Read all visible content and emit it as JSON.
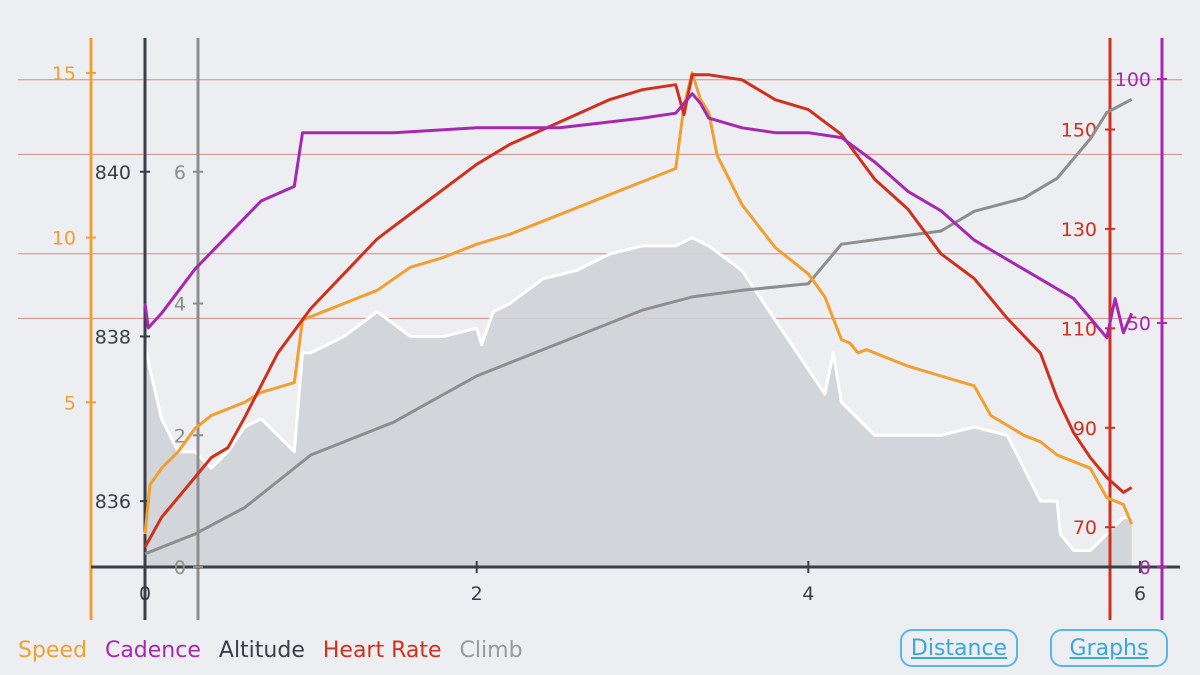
{
  "chart_data": {
    "type": "line",
    "x_axis": {
      "label": "Distance",
      "range": [
        0,
        6
      ],
      "ticks": [
        "0",
        "2",
        "4",
        "6"
      ]
    },
    "axes": {
      "speed": {
        "range": [
          0,
          16
        ],
        "ticks": [
          "5",
          "10",
          "15"
        ],
        "color": "#f0a030"
      },
      "altitude": {
        "range": [
          835.2,
          841.6
        ],
        "ticks": [
          "836",
          "838",
          "840"
        ],
        "color": "#3a3f47"
      },
      "climb": {
        "range": [
          0,
          8
        ],
        "ticks": [
          "0",
          "2",
          "4",
          "6"
        ],
        "color": "#8e8e8e"
      },
      "heart_rate": {
        "range": [
          62,
          168
        ],
        "ticks": [
          "70",
          "90",
          "110",
          "130",
          "150"
        ],
        "color": "#d0301e"
      },
      "cadence": {
        "range": [
          0,
          108
        ],
        "ticks": [
          "0",
          "50",
          "100"
        ],
        "color": "#a628b0"
      }
    },
    "reference_lines_heart_rate": [
      160,
      145,
      125,
      112
    ],
    "series": [
      {
        "name": "Altitude",
        "axis": "altitude",
        "style": "filled-area",
        "color": "#ffffff",
        "x": [
          0,
          0.03,
          0.1,
          0.2,
          0.3,
          0.4,
          0.5,
          0.6,
          0.7,
          0.8,
          0.9,
          0.95,
          1.0,
          1.2,
          1.4,
          1.6,
          1.8,
          2.0,
          2.03,
          2.1,
          2.2,
          2.4,
          2.6,
          2.8,
          3.0,
          3.2,
          3.3,
          3.4,
          3.6,
          3.8,
          4.0,
          4.1,
          4.15,
          4.2,
          4.3,
          4.4,
          4.6,
          4.8,
          5.0,
          5.2,
          5.4,
          5.5,
          5.52,
          5.6,
          5.7,
          5.8,
          5.9,
          5.95
        ],
        "values": [
          837.9,
          837.6,
          837.0,
          836.6,
          836.6,
          836.4,
          836.6,
          836.9,
          837.0,
          836.8,
          836.6,
          837.8,
          837.8,
          838.0,
          838.3,
          838.0,
          838.0,
          838.1,
          837.9,
          838.3,
          838.4,
          838.7,
          838.8,
          839.0,
          839.1,
          839.1,
          839.2,
          839.1,
          838.8,
          838.2,
          837.6,
          837.3,
          837.8,
          837.2,
          837.0,
          836.8,
          836.8,
          836.8,
          836.9,
          836.8,
          836.0,
          836.0,
          835.6,
          835.4,
          835.4,
          835.6,
          835.8,
          835.8
        ]
      },
      {
        "name": "Climb",
        "axis": "climb",
        "color": "#8e8e8e",
        "x": [
          0,
          0.3,
          0.6,
          1.0,
          1.5,
          2.0,
          2.5,
          3.0,
          3.3,
          3.6,
          4.0,
          4.2,
          4.5,
          4.8,
          5.0,
          5.3,
          5.5,
          5.7,
          5.8,
          5.95
        ],
        "values": [
          0.2,
          0.5,
          0.9,
          1.7,
          2.2,
          2.9,
          3.4,
          3.9,
          4.1,
          4.2,
          4.3,
          4.9,
          5.0,
          5.1,
          5.4,
          5.6,
          5.9,
          6.5,
          6.9,
          7.1
        ]
      },
      {
        "name": "Speed",
        "axis": "speed",
        "color": "#f0a030",
        "x": [
          0,
          0.03,
          0.1,
          0.2,
          0.3,
          0.4,
          0.5,
          0.6,
          0.7,
          0.9,
          0.95,
          1.0,
          1.2,
          1.4,
          1.6,
          1.8,
          2.0,
          2.2,
          2.4,
          2.6,
          2.8,
          3.0,
          3.2,
          3.25,
          3.3,
          3.35,
          3.4,
          3.45,
          3.6,
          3.8,
          4.0,
          4.1,
          4.2,
          4.25,
          4.3,
          4.35,
          4.5,
          4.6,
          4.8,
          5.0,
          5.1,
          5.3,
          5.4,
          5.5,
          5.6,
          5.7,
          5.8,
          5.9,
          5.95
        ],
        "values": [
          1.0,
          2.5,
          3.0,
          3.5,
          4.2,
          4.6,
          4.8,
          5.0,
          5.3,
          5.6,
          7.5,
          7.6,
          8.0,
          8.4,
          9.1,
          9.4,
          9.8,
          10.1,
          10.5,
          10.9,
          11.3,
          11.7,
          12.1,
          14.0,
          15.0,
          14.2,
          13.8,
          12.5,
          11.0,
          9.7,
          8.9,
          8.2,
          6.9,
          6.8,
          6.5,
          6.6,
          6.3,
          6.1,
          5.8,
          5.5,
          4.6,
          4.0,
          3.8,
          3.4,
          3.2,
          3.0,
          2.1,
          1.9,
          1.3
        ]
      },
      {
        "name": "Heart Rate",
        "axis": "heart_rate",
        "color": "#d0301e",
        "x": [
          0,
          0.1,
          0.2,
          0.3,
          0.4,
          0.5,
          0.6,
          0.8,
          1.0,
          1.2,
          1.4,
          1.6,
          1.8,
          2.0,
          2.2,
          2.4,
          2.6,
          2.8,
          3.0,
          3.2,
          3.25,
          3.3,
          3.35,
          3.4,
          3.6,
          3.8,
          4.0,
          4.2,
          4.4,
          4.6,
          4.8,
          5.0,
          5.2,
          5.4,
          5.5,
          5.6,
          5.7,
          5.8,
          5.9,
          5.95
        ],
        "values": [
          66,
          72,
          76,
          80,
          84,
          86,
          92,
          105,
          114,
          121,
          128,
          133,
          138,
          143,
          147,
          150,
          153,
          156,
          158,
          159,
          153,
          161,
          161,
          161,
          160,
          156,
          154,
          149,
          140,
          134,
          125,
          120,
          112,
          105,
          96,
          89,
          84,
          80,
          77,
          78
        ]
      },
      {
        "name": "Cadence",
        "axis": "cadence",
        "color": "#a628b0",
        "x": [
          0,
          0.02,
          0.1,
          0.3,
          0.5,
          0.7,
          0.9,
          0.95,
          1.2,
          1.5,
          2.0,
          2.5,
          3.0,
          3.2,
          3.3,
          3.35,
          3.4,
          3.6,
          3.8,
          4.0,
          4.2,
          4.4,
          4.6,
          4.8,
          5.0,
          5.2,
          5.4,
          5.6,
          5.7,
          5.8,
          5.85,
          5.9,
          5.95
        ],
        "values": [
          54,
          49,
          52,
          61,
          68,
          75,
          78,
          89,
          89,
          89,
          90,
          90,
          92,
          93,
          97,
          95,
          92,
          90,
          89,
          89,
          88,
          83,
          77,
          73,
          67,
          63,
          59,
          55,
          51,
          47,
          55,
          48,
          52
        ]
      }
    ]
  },
  "legend": {
    "speed": "Speed",
    "cadence": "Cadence",
    "altitude": "Altitude",
    "heart_rate": "Heart Rate",
    "climb": "Climb"
  },
  "buttons": {
    "distance": "Distance",
    "graphs": "Graphs"
  }
}
